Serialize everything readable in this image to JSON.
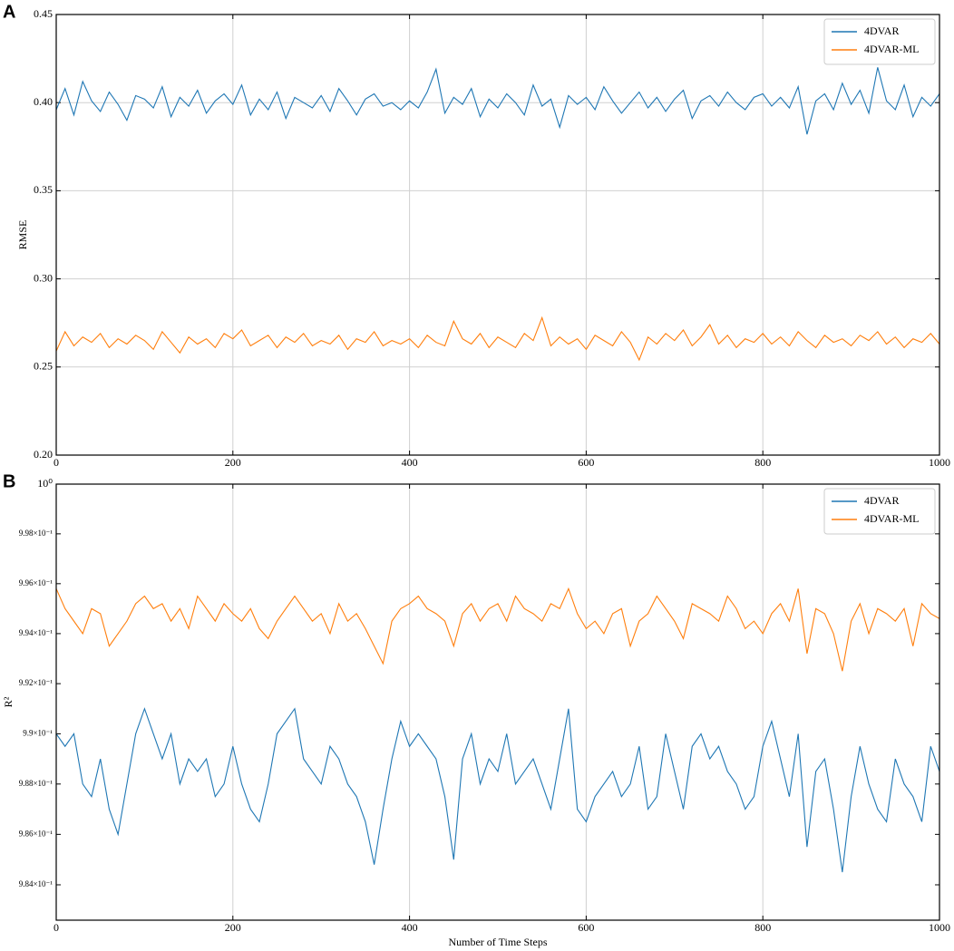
{
  "chart_data": [
    {
      "type": "line",
      "panel": "A",
      "ylabel": "RMSE",
      "grid": "both",
      "legend": "upper right",
      "log_y": false,
      "xlim": [
        0,
        1000
      ],
      "xticks": [
        0,
        200,
        400,
        600,
        800,
        1000
      ],
      "ylim": [
        0.2,
        0.45
      ],
      "yticks": [
        {
          "value": 0.2,
          "label": "0.20"
        },
        0.25,
        {
          "value": 0.3,
          "label": "0.30"
        },
        0.35,
        {
          "value": 0.4,
          "label": "0.40"
        },
        0.45
      ],
      "x": [
        0,
        10,
        20,
        30,
        40,
        50,
        60,
        70,
        80,
        90,
        100,
        110,
        120,
        130,
        140,
        150,
        160,
        170,
        180,
        190,
        200,
        210,
        220,
        230,
        240,
        250,
        260,
        270,
        280,
        290,
        300,
        310,
        320,
        330,
        340,
        350,
        360,
        370,
        380,
        390,
        400,
        410,
        420,
        430,
        440,
        450,
        460,
        470,
        480,
        490,
        500,
        510,
        520,
        530,
        540,
        550,
        560,
        570,
        580,
        590,
        600,
        610,
        620,
        630,
        640,
        650,
        660,
        670,
        680,
        690,
        700,
        710,
        720,
        730,
        740,
        750,
        760,
        770,
        780,
        790,
        800,
        810,
        820,
        830,
        840,
        850,
        860,
        870,
        880,
        890,
        900,
        910,
        920,
        930,
        940,
        950,
        960,
        970,
        980,
        990,
        1000
      ],
      "series": [
        {
          "name": "4DVAR",
          "color": "#1f77b4",
          "values": [
            0.396,
            0.408,
            0.393,
            0.412,
            0.401,
            0.395,
            0.406,
            0.399,
            0.39,
            0.404,
            0.402,
            0.397,
            0.409,
            0.392,
            0.403,
            0.398,
            0.407,
            0.394,
            0.401,
            0.405,
            0.399,
            0.41,
            0.393,
            0.402,
            0.396,
            0.406,
            0.391,
            0.403,
            0.4,
            0.397,
            0.404,
            0.395,
            0.408,
            0.401,
            0.393,
            0.402,
            0.405,
            0.398,
            0.4,
            0.396,
            0.401,
            0.397,
            0.406,
            0.419,
            0.394,
            0.403,
            0.399,
            0.408,
            0.392,
            0.402,
            0.397,
            0.405,
            0.4,
            0.393,
            0.41,
            0.398,
            0.402,
            0.386,
            0.404,
            0.399,
            0.403,
            0.396,
            0.409,
            0.401,
            0.394,
            0.4,
            0.406,
            0.397,
            0.403,
            0.395,
            0.402,
            0.407,
            0.391,
            0.401,
            0.404,
            0.398,
            0.406,
            0.4,
            0.396,
            0.403,
            0.405,
            0.398,
            0.403,
            0.397,
            0.409,
            0.382,
            0.401,
            0.405,
            0.396,
            0.411,
            0.399,
            0.407,
            0.394,
            0.42,
            0.401,
            0.396,
            0.41,
            0.392,
            0.403,
            0.398,
            0.405
          ]
        },
        {
          "name": "4DVAR-ML",
          "color": "#ff7f0e",
          "values": [
            0.259,
            0.27,
            0.262,
            0.267,
            0.264,
            0.269,
            0.261,
            0.266,
            0.263,
            0.268,
            0.265,
            0.26,
            0.27,
            0.264,
            0.258,
            0.267,
            0.263,
            0.266,
            0.261,
            0.269,
            0.266,
            0.271,
            0.262,
            0.265,
            0.268,
            0.261,
            0.267,
            0.264,
            0.269,
            0.262,
            0.265,
            0.263,
            0.268,
            0.26,
            0.266,
            0.264,
            0.27,
            0.262,
            0.265,
            0.263,
            0.266,
            0.261,
            0.268,
            0.264,
            0.262,
            0.276,
            0.266,
            0.263,
            0.269,
            0.261,
            0.267,
            0.264,
            0.261,
            0.269,
            0.265,
            0.278,
            0.262,
            0.267,
            0.263,
            0.266,
            0.26,
            0.268,
            0.265,
            0.262,
            0.27,
            0.264,
            0.254,
            0.267,
            0.263,
            0.269,
            0.265,
            0.271,
            0.262,
            0.267,
            0.274,
            0.263,
            0.268,
            0.261,
            0.266,
            0.264,
            0.269,
            0.263,
            0.267,
            0.262,
            0.27,
            0.265,
            0.261,
            0.268,
            0.264,
            0.266,
            0.262,
            0.268,
            0.265,
            0.27,
            0.263,
            0.267,
            0.261,
            0.266,
            0.264,
            0.269,
            0.263
          ]
        }
      ]
    },
    {
      "type": "line",
      "panel": "B",
      "ylabel": "R²",
      "xlabel": "Number of Time Steps",
      "grid": "x",
      "legend": "upper right",
      "log_y": true,
      "xlim": [
        0,
        1000
      ],
      "xticks": [
        0,
        200,
        400,
        600,
        800,
        1000
      ],
      "ylim": [
        0.9826,
        1
      ],
      "yticks": [
        {
          "value": 0.984,
          "label": "9.84×10⁻¹"
        },
        {
          "value": 0.986,
          "label": "9.86×10⁻¹"
        },
        {
          "value": 0.988,
          "label": "9.88×10⁻¹"
        },
        {
          "value": 0.99,
          "label": "9.9×10⁻¹"
        },
        {
          "value": 0.992,
          "label": "9.92×10⁻¹"
        },
        {
          "value": 0.994,
          "label": "9.94×10⁻¹"
        },
        {
          "value": 0.996,
          "label": "9.96×10⁻¹"
        },
        {
          "value": 0.998,
          "label": "9.98×10⁻¹"
        },
        {
          "value": 1,
          "label": "10⁰"
        }
      ],
      "x": [
        0,
        10,
        20,
        30,
        40,
        50,
        60,
        70,
        80,
        90,
        100,
        110,
        120,
        130,
        140,
        150,
        160,
        170,
        180,
        190,
        200,
        210,
        220,
        230,
        240,
        250,
        260,
        270,
        280,
        290,
        300,
        310,
        320,
        330,
        340,
        350,
        360,
        370,
        380,
        390,
        400,
        410,
        420,
        430,
        440,
        450,
        460,
        470,
        480,
        490,
        500,
        510,
        520,
        530,
        540,
        550,
        560,
        570,
        580,
        590,
        600,
        610,
        620,
        630,
        640,
        650,
        660,
        670,
        680,
        690,
        700,
        710,
        720,
        730,
        740,
        750,
        760,
        770,
        780,
        790,
        800,
        810,
        820,
        830,
        840,
        850,
        860,
        870,
        880,
        890,
        900,
        910,
        920,
        930,
        940,
        950,
        960,
        970,
        980,
        990,
        1000
      ],
      "series": [
        {
          "name": "4DVAR",
          "color": "#1f77b4",
          "values": [
            0.99,
            0.9895,
            0.99,
            0.988,
            0.9875,
            0.989,
            0.987,
            0.986,
            0.988,
            0.99,
            0.991,
            0.99,
            0.989,
            0.99,
            0.988,
            0.989,
            0.9885,
            0.989,
            0.9875,
            0.988,
            0.9895,
            0.988,
            0.987,
            0.9865,
            0.988,
            0.99,
            0.9905,
            0.991,
            0.989,
            0.9885,
            0.988,
            0.9895,
            0.989,
            0.988,
            0.9875,
            0.9865,
            0.9848,
            0.987,
            0.989,
            0.9905,
            0.9895,
            0.99,
            0.9895,
            0.989,
            0.9875,
            0.985,
            0.989,
            0.99,
            0.988,
            0.989,
            0.9885,
            0.99,
            0.988,
            0.9885,
            0.989,
            0.988,
            0.987,
            0.989,
            0.991,
            0.987,
            0.9865,
            0.9875,
            0.988,
            0.9885,
            0.9875,
            0.988,
            0.9895,
            0.987,
            0.9875,
            0.99,
            0.9885,
            0.987,
            0.9895,
            0.99,
            0.989,
            0.9895,
            0.9885,
            0.988,
            0.987,
            0.9875,
            0.9895,
            0.9905,
            0.989,
            0.9875,
            0.99,
            0.9855,
            0.9885,
            0.989,
            0.987,
            0.9845,
            0.9875,
            0.9895,
            0.988,
            0.987,
            0.9865,
            0.989,
            0.988,
            0.9875,
            0.9865,
            0.9895,
            0.9885
          ]
        },
        {
          "name": "4DVAR-ML",
          "color": "#ff7f0e",
          "values": [
            0.9958,
            0.995,
            0.9945,
            0.994,
            0.995,
            0.9948,
            0.9935,
            0.994,
            0.9945,
            0.9952,
            0.9955,
            0.995,
            0.9952,
            0.9945,
            0.995,
            0.9942,
            0.9955,
            0.995,
            0.9945,
            0.9952,
            0.9948,
            0.9945,
            0.995,
            0.9942,
            0.9938,
            0.9945,
            0.995,
            0.9955,
            0.995,
            0.9945,
            0.9948,
            0.994,
            0.9952,
            0.9945,
            0.9948,
            0.9942,
            0.9935,
            0.9928,
            0.9945,
            0.995,
            0.9952,
            0.9955,
            0.995,
            0.9948,
            0.9945,
            0.9935,
            0.9948,
            0.9952,
            0.9945,
            0.995,
            0.9952,
            0.9945,
            0.9955,
            0.995,
            0.9948,
            0.9945,
            0.9952,
            0.995,
            0.9958,
            0.9948,
            0.9942,
            0.9945,
            0.994,
            0.9948,
            0.995,
            0.9935,
            0.9945,
            0.9948,
            0.9955,
            0.995,
            0.9945,
            0.9938,
            0.9952,
            0.995,
            0.9948,
            0.9945,
            0.9955,
            0.995,
            0.9942,
            0.9945,
            0.994,
            0.9948,
            0.9952,
            0.9945,
            0.9958,
            0.9932,
            0.995,
            0.9948,
            0.994,
            0.9925,
            0.9945,
            0.9952,
            0.994,
            0.995,
            0.9948,
            0.9945,
            0.995,
            0.9935,
            0.9952,
            0.9948,
            0.9946
          ]
        }
      ]
    }
  ]
}
